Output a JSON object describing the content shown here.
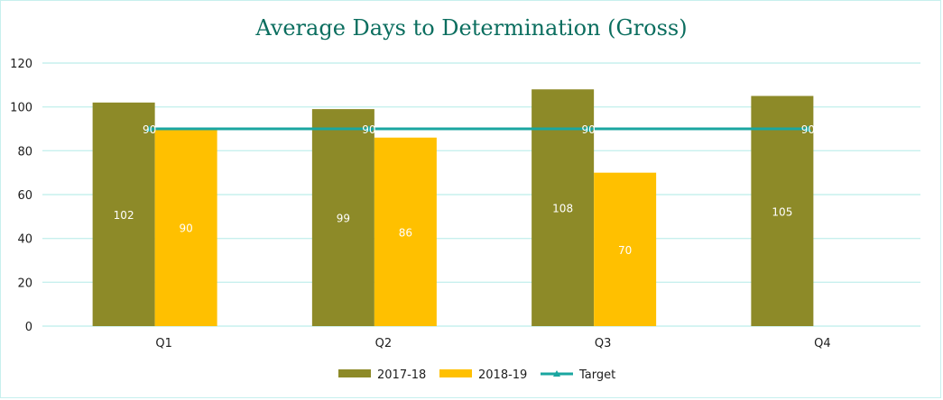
{
  "chart_data": {
    "type": "bar",
    "title": "Average Days to Determination (Gross)",
    "categories": [
      "Q1",
      "Q2",
      "Q3",
      "Q4"
    ],
    "series": [
      {
        "name": "2017-18",
        "type": "bar",
        "color": "#8d8a28",
        "values": [
          102,
          99,
          108,
          105
        ]
      },
      {
        "name": "2018-19",
        "type": "bar",
        "color": "#ffc000",
        "values": [
          90,
          86,
          70,
          null
        ]
      },
      {
        "name": "Target",
        "type": "line",
        "color": "#1aa6a0",
        "values": [
          90,
          90,
          90,
          90
        ]
      }
    ],
    "ylim": [
      0,
      120
    ],
    "yticks": [
      0,
      20,
      40,
      60,
      80,
      100,
      120
    ],
    "grid": true,
    "legend_position": "bottom"
  }
}
